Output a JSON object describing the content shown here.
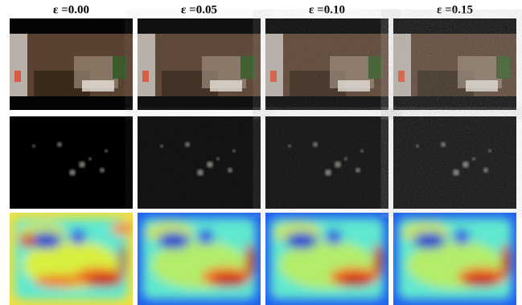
{
  "columns": [
    {
      "title": "ε =0.00"
    },
    {
      "title": "ε =0.05"
    },
    {
      "title": "ε =0.10"
    },
    {
      "title": "ε =0.15"
    }
  ]
}
